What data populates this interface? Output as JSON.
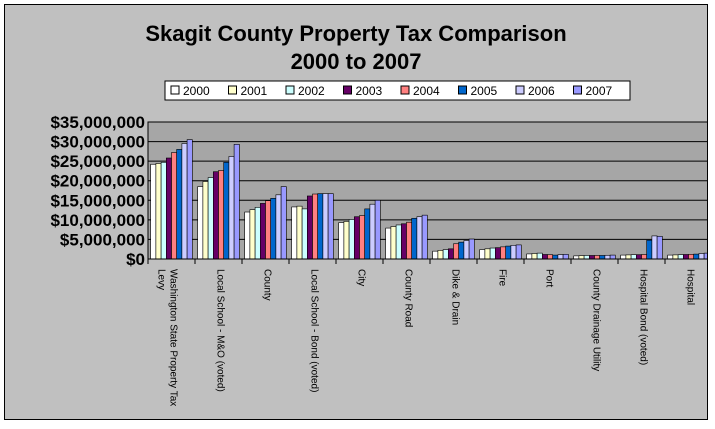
{
  "chart_data": {
    "type": "bar",
    "title": "Skagit County Property Tax Comparison",
    "subtitle": "2000 to 2007",
    "xlabel": "",
    "ylabel": "",
    "ylim": [
      0,
      35000000
    ],
    "yticks": [
      "$0",
      "$5,000,000",
      "$10,000,000",
      "$15,000,000",
      "$20,000,000",
      "$25,000,000",
      "$30,000,000",
      "$35,000,000"
    ],
    "grid": true,
    "legend_position": "top",
    "categories": [
      "Washington State Property Tax Levy",
      "Local School - M&O (voted)",
      "County",
      "Local School - Bond (voted)",
      "City",
      "County Road",
      "Dike & Drain",
      "Fire",
      "Port",
      "County Drainage Utility",
      "Hospital Bond (voted)",
      "Hospital"
    ],
    "category_lines": [
      [
        "Washington State Property Tax",
        "Levy"
      ],
      [
        "Local School - M&O (voted)"
      ],
      [
        "County"
      ],
      [
        "Local School - Bond (voted)"
      ],
      [
        "City"
      ],
      [
        "County Road"
      ],
      [
        "Dike & Drain"
      ],
      [
        "Fire"
      ],
      [
        "Port"
      ],
      [
        "County Drainage Utility"
      ],
      [
        "Hospital Bond (voted)"
      ],
      [
        "Hospital"
      ]
    ],
    "series": [
      {
        "name": "2000",
        "color": "#ffffff",
        "values": [
          24200000,
          18500000,
          12000000,
          13300000,
          9300000,
          7900000,
          2000000,
          2400000,
          1300000,
          800000,
          1000000,
          1000000
        ]
      },
      {
        "name": "2001",
        "color": "#ffffcc",
        "values": [
          24400000,
          19800000,
          12600000,
          13500000,
          9600000,
          8300000,
          2200000,
          2600000,
          1400000,
          850000,
          1050000,
          1050000
        ]
      },
      {
        "name": "2002",
        "color": "#ccffff",
        "values": [
          24700000,
          20800000,
          13200000,
          12800000,
          10100000,
          8700000,
          2400000,
          2800000,
          1500000,
          900000,
          1100000,
          1100000
        ]
      },
      {
        "name": "2003",
        "color": "#660066",
        "values": [
          25800000,
          22300000,
          14200000,
          16100000,
          10800000,
          9000000,
          2600000,
          2900000,
          1150000,
          900000,
          1100000,
          1150000
        ]
      },
      {
        "name": "2004",
        "color": "#ff8080",
        "values": [
          27200000,
          22600000,
          14900000,
          16600000,
          11100000,
          9400000,
          3900000,
          3100000,
          1100000,
          900000,
          1150000,
          1200000
        ]
      },
      {
        "name": "2005",
        "color": "#0066cc",
        "values": [
          28000000,
          24700000,
          15500000,
          16700000,
          12800000,
          10400000,
          4300000,
          3300000,
          1000000,
          900000,
          4800000,
          1250000
        ]
      },
      {
        "name": "2006",
        "color": "#ccccff",
        "values": [
          29500000,
          26200000,
          16400000,
          16700000,
          14000000,
          10800000,
          4700000,
          3500000,
          1100000,
          950000,
          5900000,
          1400000
        ]
      },
      {
        "name": "2007",
        "color": "#9999ff",
        "values": [
          30500000,
          29300000,
          18500000,
          16700000,
          15000000,
          11200000,
          5100000,
          3600000,
          1200000,
          1000000,
          5800000,
          1500000
        ]
      }
    ]
  }
}
